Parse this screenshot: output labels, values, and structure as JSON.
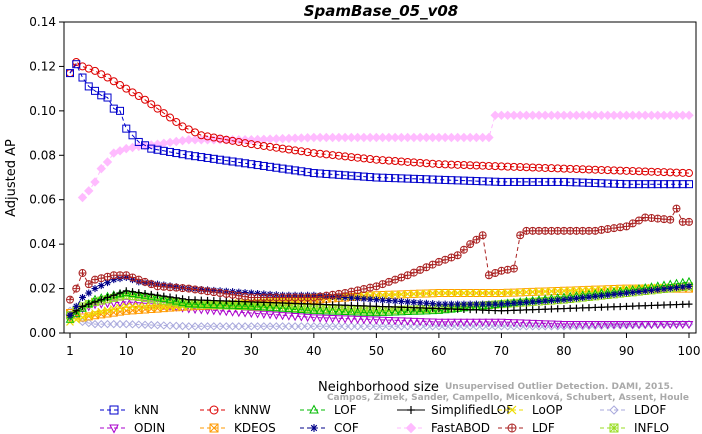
{
  "chart_data": {
    "type": "line",
    "title": "SpamBase_05_v08",
    "xlabel": "Neighborhood size",
    "ylabel": "Adjusted AP",
    "credit_lines": [
      "Unsupervised Outlier Detection. DAMI, 2015.",
      "Campos, Zimek, Sander, Campello, Micenková, Schubert, Assent, Houle"
    ],
    "xlim": [
      1,
      100
    ],
    "ylim": [
      0,
      0.14
    ],
    "x_ticks": [
      1,
      10,
      20,
      30,
      40,
      50,
      60,
      70,
      80,
      90,
      100
    ],
    "x_tick_labels": [
      "1",
      "10",
      "20",
      "30",
      "40",
      "50",
      "60",
      "70",
      "80",
      "90",
      "100"
    ],
    "y_ticks": [
      0,
      0.02,
      0.04,
      0.06,
      0.08,
      0.1,
      0.12,
      0.14
    ],
    "y_tick_labels": [
      "0.00",
      "0.02",
      "0.04",
      "0.06",
      "0.08",
      "0.10",
      "0.12",
      "0.14"
    ],
    "grid": false,
    "legend_position": "bottom",
    "series": [
      {
        "name": "kNN",
        "color": "#0000cc",
        "marker": "square",
        "linestyle": "dashed",
        "keypoints": [
          [
            1,
            0.117
          ],
          [
            2,
            0.121
          ],
          [
            3,
            0.115
          ],
          [
            4,
            0.111
          ],
          [
            5,
            0.109
          ],
          [
            6,
            0.107
          ],
          [
            7,
            0.106
          ],
          [
            8,
            0.101
          ],
          [
            9,
            0.1
          ],
          [
            10,
            0.092
          ],
          [
            12,
            0.086
          ],
          [
            14,
            0.083
          ],
          [
            16,
            0.082
          ],
          [
            20,
            0.08
          ],
          [
            25,
            0.078
          ],
          [
            30,
            0.076
          ],
          [
            35,
            0.074
          ],
          [
            40,
            0.072
          ],
          [
            50,
            0.07
          ],
          [
            60,
            0.069
          ],
          [
            70,
            0.068
          ],
          [
            80,
            0.068
          ],
          [
            90,
            0.067
          ],
          [
            100,
            0.067
          ]
        ]
      },
      {
        "name": "kNNW",
        "color": "#dd0000",
        "marker": "circle",
        "linestyle": "dashed",
        "keypoints": [
          [
            1,
            0.117
          ],
          [
            2,
            0.122
          ],
          [
            3,
            0.12
          ],
          [
            5,
            0.118
          ],
          [
            7,
            0.115
          ],
          [
            10,
            0.11
          ],
          [
            13,
            0.105
          ],
          [
            16,
            0.099
          ],
          [
            19,
            0.093
          ],
          [
            22,
            0.089
          ],
          [
            26,
            0.087
          ],
          [
            30,
            0.085
          ],
          [
            35,
            0.083
          ],
          [
            40,
            0.081
          ],
          [
            50,
            0.078
          ],
          [
            60,
            0.076
          ],
          [
            70,
            0.075
          ],
          [
            80,
            0.074
          ],
          [
            90,
            0.073
          ],
          [
            100,
            0.072
          ]
        ]
      },
      {
        "name": "LOF",
        "color": "#00bb00",
        "marker": "triangle-up",
        "linestyle": "dashed",
        "keypoints": [
          [
            1,
            0.006
          ],
          [
            3,
            0.011
          ],
          [
            5,
            0.015
          ],
          [
            8,
            0.017
          ],
          [
            10,
            0.018
          ],
          [
            15,
            0.016
          ],
          [
            20,
            0.013
          ],
          [
            30,
            0.012
          ],
          [
            40,
            0.01
          ],
          [
            50,
            0.009
          ],
          [
            60,
            0.01
          ],
          [
            70,
            0.013
          ],
          [
            80,
            0.016
          ],
          [
            90,
            0.019
          ],
          [
            100,
            0.023
          ]
        ]
      },
      {
        "name": "SimplifiedLOF",
        "color": "#000000",
        "marker": "plus",
        "linestyle": "solid",
        "keypoints": [
          [
            1,
            0.008
          ],
          [
            3,
            0.012
          ],
          [
            5,
            0.014
          ],
          [
            8,
            0.017
          ],
          [
            10,
            0.019
          ],
          [
            15,
            0.017
          ],
          [
            20,
            0.015
          ],
          [
            30,
            0.014
          ],
          [
            40,
            0.013
          ],
          [
            50,
            0.012
          ],
          [
            60,
            0.011
          ],
          [
            70,
            0.01
          ],
          [
            80,
            0.011
          ],
          [
            90,
            0.012
          ],
          [
            100,
            0.013
          ]
        ]
      },
      {
        "name": "LoOP",
        "color": "#eedd00",
        "marker": "x",
        "linestyle": "dashed",
        "keypoints": [
          [
            1,
            0.005
          ],
          [
            5,
            0.009
          ],
          [
            10,
            0.012
          ],
          [
            20,
            0.012
          ],
          [
            30,
            0.014
          ],
          [
            40,
            0.016
          ],
          [
            50,
            0.017
          ],
          [
            60,
            0.018
          ],
          [
            70,
            0.018
          ],
          [
            80,
            0.019
          ],
          [
            90,
            0.02
          ],
          [
            100,
            0.021
          ]
        ]
      },
      {
        "name": "LDOF",
        "color": "#aaaadd",
        "marker": "diamond",
        "linestyle": "dashed",
        "keypoints": [
          [
            1,
            0.01
          ],
          [
            3,
            0.005
          ],
          [
            5,
            0.004
          ],
          [
            10,
            0.004
          ],
          [
            20,
            0.003
          ],
          [
            30,
            0.003
          ],
          [
            40,
            0.003
          ],
          [
            60,
            0.003
          ],
          [
            80,
            0.003
          ],
          [
            100,
            0.004
          ]
        ]
      },
      {
        "name": "ODIN",
        "color": "#aa00cc",
        "marker": "triangle-down",
        "linestyle": "dashed",
        "keypoints": [
          [
            1,
            0.007
          ],
          [
            3,
            0.011
          ],
          [
            5,
            0.013
          ],
          [
            10,
            0.014
          ],
          [
            15,
            0.013
          ],
          [
            20,
            0.011
          ],
          [
            30,
            0.009
          ],
          [
            40,
            0.007
          ],
          [
            50,
            0.006
          ],
          [
            60,
            0.005
          ],
          [
            70,
            0.005
          ],
          [
            80,
            0.004
          ],
          [
            90,
            0.004
          ],
          [
            100,
            0.004
          ]
        ]
      },
      {
        "name": "KDEOS",
        "color": "#ff9900",
        "marker": "square-x",
        "linestyle": "dashed",
        "keypoints": [
          [
            1,
            0.009
          ],
          [
            3,
            0.007
          ],
          [
            5,
            0.008
          ],
          [
            10,
            0.01
          ],
          [
            20,
            0.012
          ],
          [
            30,
            0.013
          ],
          [
            40,
            0.015
          ],
          [
            50,
            0.017
          ],
          [
            60,
            0.018
          ],
          [
            70,
            0.018
          ],
          [
            80,
            0.019
          ],
          [
            90,
            0.02
          ],
          [
            100,
            0.02
          ]
        ]
      },
      {
        "name": "COF",
        "color": "#000088",
        "marker": "asterisk",
        "linestyle": "dashed",
        "keypoints": [
          [
            1,
            0.008
          ],
          [
            3,
            0.016
          ],
          [
            5,
            0.02
          ],
          [
            8,
            0.024
          ],
          [
            10,
            0.025
          ],
          [
            12,
            0.023
          ],
          [
            15,
            0.022
          ],
          [
            20,
            0.02
          ],
          [
            25,
            0.019
          ],
          [
            30,
            0.018
          ],
          [
            35,
            0.017
          ],
          [
            40,
            0.017
          ],
          [
            45,
            0.016
          ],
          [
            50,
            0.015
          ],
          [
            60,
            0.013
          ],
          [
            70,
            0.013
          ],
          [
            80,
            0.015
          ],
          [
            90,
            0.018
          ],
          [
            100,
            0.021
          ]
        ]
      },
      {
        "name": "FastABOD",
        "color": "#ffbbff",
        "marker": "diamond-filled",
        "linestyle": "dashed",
        "keypoints": [
          [
            3,
            0.061
          ],
          [
            4,
            0.064
          ],
          [
            5,
            0.068
          ],
          [
            6,
            0.074
          ],
          [
            7,
            0.077
          ],
          [
            8,
            0.081
          ],
          [
            9,
            0.082
          ],
          [
            10,
            0.083
          ],
          [
            12,
            0.084
          ],
          [
            15,
            0.085
          ],
          [
            20,
            0.087
          ],
          [
            30,
            0.087
          ],
          [
            40,
            0.088
          ],
          [
            50,
            0.088
          ],
          [
            60,
            0.088
          ],
          [
            68,
            0.088
          ],
          [
            69,
            0.098
          ],
          [
            70,
            0.098
          ],
          [
            80,
            0.098
          ],
          [
            90,
            0.098
          ],
          [
            100,
            0.098
          ]
        ]
      },
      {
        "name": "LDF",
        "color": "#aa2222",
        "marker": "circle-plus",
        "linestyle": "dashed",
        "keypoints": [
          [
            1,
            0.015
          ],
          [
            2,
            0.02
          ],
          [
            3,
            0.027
          ],
          [
            4,
            0.022
          ],
          [
            5,
            0.024
          ],
          [
            8,
            0.026
          ],
          [
            10,
            0.026
          ],
          [
            15,
            0.021
          ],
          [
            20,
            0.02
          ],
          [
            30,
            0.016
          ],
          [
            40,
            0.016
          ],
          [
            45,
            0.018
          ],
          [
            50,
            0.021
          ],
          [
            55,
            0.026
          ],
          [
            60,
            0.032
          ],
          [
            63,
            0.035
          ],
          [
            65,
            0.04
          ],
          [
            67,
            0.044
          ],
          [
            68,
            0.026
          ],
          [
            70,
            0.028
          ],
          [
            72,
            0.029
          ],
          [
            73,
            0.044
          ],
          [
            74,
            0.046
          ],
          [
            80,
            0.046
          ],
          [
            85,
            0.046
          ],
          [
            90,
            0.048
          ],
          [
            93,
            0.052
          ],
          [
            97,
            0.051
          ],
          [
            98,
            0.056
          ],
          [
            99,
            0.05
          ],
          [
            100,
            0.05
          ]
        ]
      },
      {
        "name": "INFLO",
        "color": "#99dd22",
        "marker": "square-star",
        "linestyle": "dashed",
        "keypoints": [
          [
            1,
            0.008
          ],
          [
            3,
            0.012
          ],
          [
            5,
            0.014
          ],
          [
            10,
            0.017
          ],
          [
            15,
            0.015
          ],
          [
            20,
            0.013
          ],
          [
            30,
            0.012
          ],
          [
            40,
            0.011
          ],
          [
            50,
            0.01
          ],
          [
            60,
            0.011
          ],
          [
            70,
            0.013
          ],
          [
            80,
            0.015
          ],
          [
            90,
            0.018
          ],
          [
            100,
            0.021
          ]
        ]
      }
    ]
  }
}
